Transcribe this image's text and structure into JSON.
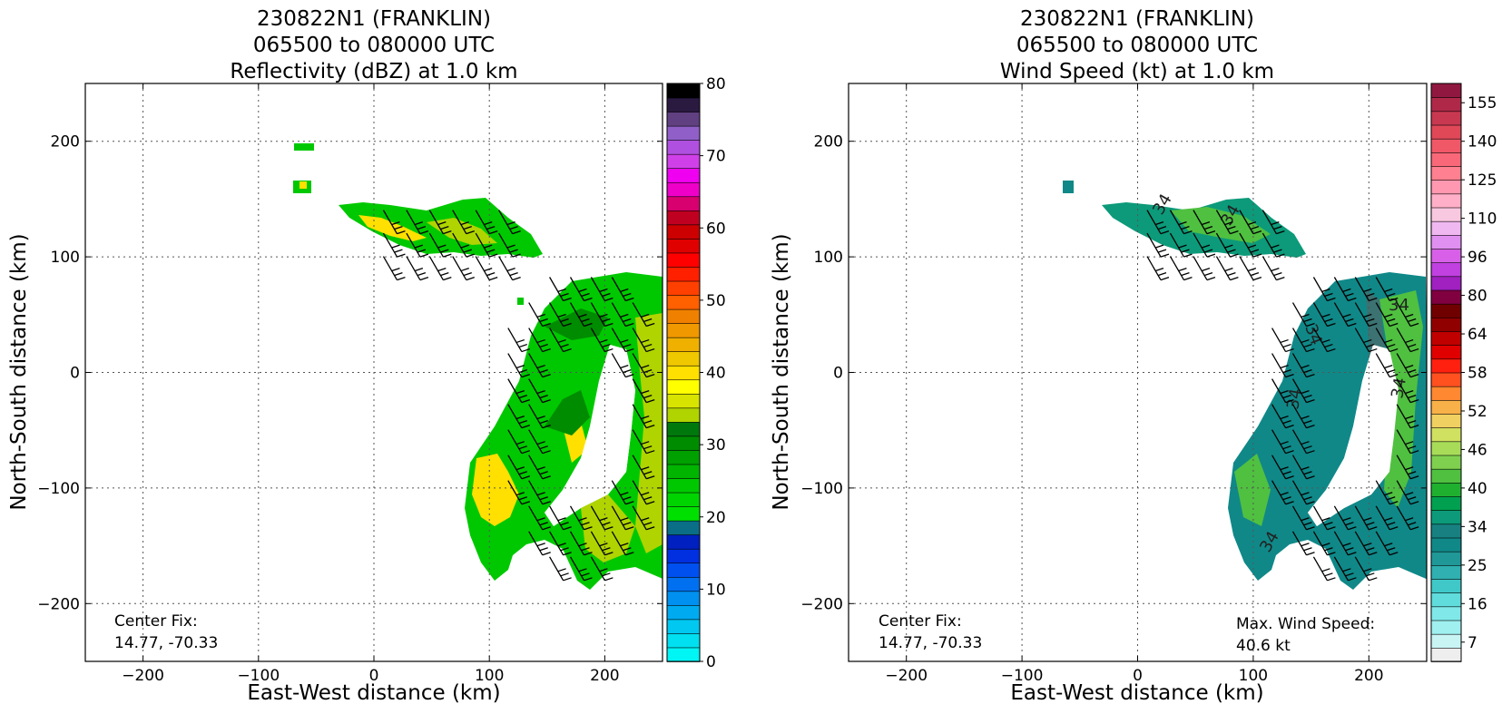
{
  "chart_data": [
    {
      "type": "heatmap",
      "title_lines": [
        "230822N1 (FRANKLIN)",
        "065500 to 080000 UTC",
        "Reflectivity (dBZ) at 1.0 km"
      ],
      "xlabel": "East-West distance (km)",
      "ylabel": "North-South distance (km)",
      "xlim": [
        -250,
        250
      ],
      "ylim": [
        -250,
        250
      ],
      "xticks": [
        -200,
        -100,
        0,
        100,
        200
      ],
      "yticks": [
        -200,
        -100,
        0,
        100,
        200
      ],
      "xtick_labels": [
        "−200",
        "−100",
        "0",
        "100",
        "200"
      ],
      "ytick_labels": [
        "−200",
        "−100",
        "0",
        "100",
        "200"
      ],
      "grid": true,
      "annotation_left": [
        "Center Fix:",
        "14.77, -70.33"
      ],
      "annotation_right": [],
      "colorbar": {
        "min": 0,
        "max": 80,
        "ticks": [
          0,
          10,
          20,
          30,
          40,
          50,
          60,
          70,
          80
        ],
        "tick_labels": [
          "0",
          "10",
          "20",
          "30",
          "40",
          "50",
          "60",
          "70",
          "80"
        ],
        "colors": [
          "#00f5f5",
          "#00e0f0",
          "#00c8f0",
          "#00aaf0",
          "#0090f0",
          "#0070f0",
          "#0050f0",
          "#0030e0",
          "#0020c0",
          "#0a6e86",
          "#00e000",
          "#00d400",
          "#00c800",
          "#00b400",
          "#00a000",
          "#008c00",
          "#00780c",
          "#b0d400",
          "#d8e400",
          "#ffff00",
          "#ffe000",
          "#f0c800",
          "#f0b000",
          "#f09800",
          "#f08000",
          "#ff6000",
          "#ff4000",
          "#ff2000",
          "#ff0000",
          "#e00000",
          "#cc0000",
          "#c00020",
          "#d8006e",
          "#ee00c8",
          "#f000f0",
          "#d040e8",
          "#b050e0",
          "#9060c8",
          "#604080",
          "#2a1a40",
          "#000000"
        ]
      },
      "field": "reflectivity"
    },
    {
      "type": "heatmap",
      "title_lines": [
        "230822N1 (FRANKLIN)",
        "065500 to 080000 UTC",
        "Wind Speed (kt) at 1.0 km"
      ],
      "xlabel": "East-West distance (km)",
      "ylabel": "North-South distance (km)",
      "xlim": [
        -250,
        250
      ],
      "ylim": [
        -250,
        250
      ],
      "xticks": [
        -200,
        -100,
        0,
        100,
        200
      ],
      "yticks": [
        -200,
        -100,
        0,
        100,
        200
      ],
      "xtick_labels": [
        "−200",
        "−100",
        "0",
        "100",
        "200"
      ],
      "ytick_labels": [
        "−200",
        "−100",
        "0",
        "100",
        "200"
      ],
      "grid": true,
      "annotation_left": [
        "Center Fix:",
        "14.77, -70.33"
      ],
      "annotation_right": [
        "Max. Wind Speed:",
        "40.6 kt"
      ],
      "contour_label": "34",
      "max_wind_speed_kt": 40.6,
      "colorbar": {
        "ticks": [
          7,
          16,
          25,
          34,
          40,
          46,
          52,
          58,
          64,
          80,
          96,
          110,
          125,
          140,
          155
        ],
        "tick_labels": [
          "7",
          "16",
          "25",
          "34",
          "40",
          "46",
          "52",
          "58",
          "64",
          "80",
          "96",
          "110",
          "125",
          "140",
          "155"
        ],
        "colors": [
          "#eeeeee",
          "#c8f4f4",
          "#a0f0f0",
          "#80e8e8",
          "#60dcdc",
          "#40c8c8",
          "#30b0b0",
          "#209898",
          "#108888",
          "#188080",
          "#0c9a7a",
          "#00a050",
          "#20b030",
          "#50c040",
          "#80d050",
          "#a8dc58",
          "#d0e060",
          "#f0d060",
          "#f8b048",
          "#ff8830",
          "#ff5020",
          "#ff2010",
          "#e00000",
          "#c00000",
          "#900000",
          "#700000",
          "#800040",
          "#a020c0",
          "#c040e0",
          "#d860e8",
          "#e090f0",
          "#f0b8f0",
          "#f8c8e0",
          "#ffb0c8",
          "#ff98b0",
          "#ff8090",
          "#f86878",
          "#f05868",
          "#e04858",
          "#c83850",
          "#b02848",
          "#901840"
        ]
      },
      "field": "wind_speed"
    }
  ]
}
